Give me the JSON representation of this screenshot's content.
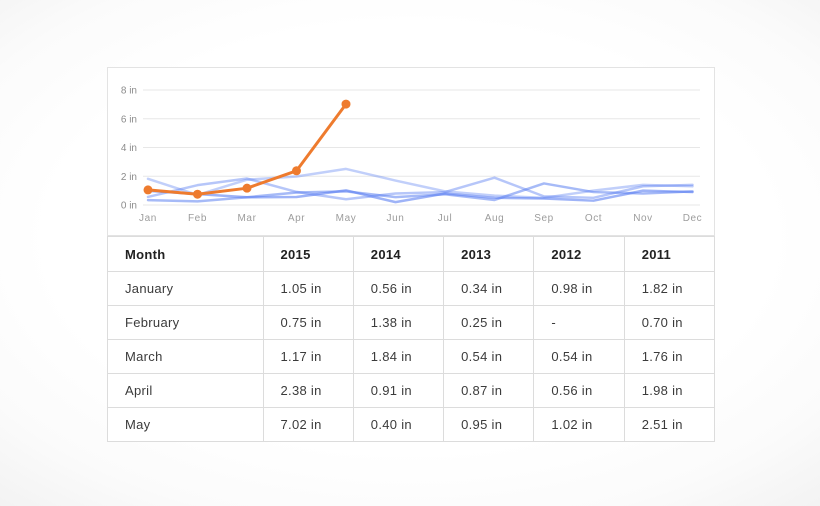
{
  "colors": {
    "accent_orange": "#ee7b2e",
    "line_blue": "#5d81f1",
    "grid_line": "#e7e7e7",
    "panel_border": "#e3e3e3",
    "axis_tick_text": "#8c8c8c",
    "axis_month_text": "#9c9c9c",
    "table_border": "#dcdcdc",
    "table_header_text": "#222222",
    "table_cell_text": "#3b3b3b"
  },
  "chart_data": {
    "type": "line",
    "title": "",
    "xlabel": "",
    "ylabel": "",
    "unit": "in",
    "ylim": [
      0,
      8
    ],
    "grid": "horizontal-only",
    "legend": "none",
    "x_categories": [
      "Jan",
      "Feb",
      "Mar",
      "Apr",
      "May",
      "Jun",
      "Jul",
      "Aug",
      "Sep",
      "Oct",
      "Nov",
      "Dec"
    ],
    "y_ticks": [
      {
        "value": 0,
        "label": "0 in"
      },
      {
        "value": 2,
        "label": "2 in"
      },
      {
        "value": 4,
        "label": "4 in"
      },
      {
        "value": 6,
        "label": "6 in"
      },
      {
        "value": 8,
        "label": "8 in"
      }
    ],
    "series": [
      {
        "name": "2015",
        "color": "#ee7b2e",
        "opacity": 1,
        "markers": true,
        "values": [
          1.05,
          0.75,
          1.17,
          2.38,
          7.02,
          null,
          null,
          null,
          null,
          null,
          null,
          null
        ]
      },
      {
        "name": "2014",
        "color": "#5d81f1",
        "opacity": 0.45,
        "markers": false,
        "values": [
          0.56,
          1.38,
          1.84,
          0.91,
          0.4,
          0.8,
          0.9,
          1.9,
          0.6,
          0.5,
          1.3,
          1.4
        ]
      },
      {
        "name": "2013",
        "color": "#5d81f1",
        "opacity": 0.55,
        "markers": false,
        "values": [
          0.34,
          0.25,
          0.54,
          0.87,
          0.95,
          0.55,
          0.75,
          0.35,
          1.5,
          0.9,
          0.8,
          0.95
        ]
      },
      {
        "name": "2012",
        "color": "#5d81f1",
        "opacity": 0.6,
        "markers": false,
        "values": [
          0.98,
          null,
          0.54,
          0.56,
          1.02,
          0.2,
          0.8,
          0.5,
          0.45,
          0.3,
          1.0,
          0.9
        ]
      },
      {
        "name": "2011",
        "color": "#5d81f1",
        "opacity": 0.38,
        "markers": false,
        "values": [
          1.82,
          0.7,
          1.76,
          1.98,
          2.51,
          1.7,
          0.95,
          0.65,
          0.5,
          1.0,
          1.4,
          1.3
        ]
      }
    ]
  },
  "table": {
    "columns": [
      "Month",
      "2015",
      "2014",
      "2013",
      "2012",
      "2011"
    ],
    "rows": [
      {
        "month": "January",
        "values": [
          "1.05 in",
          "0.56 in",
          "0.34 in",
          "0.98 in",
          "1.82 in"
        ]
      },
      {
        "month": "February",
        "values": [
          "0.75 in",
          "1.38 in",
          "0.25 in",
          "-",
          "0.70 in"
        ]
      },
      {
        "month": "March",
        "values": [
          "1.17 in",
          "1.84 in",
          "0.54 in",
          "0.54 in",
          "1.76 in"
        ]
      },
      {
        "month": "April",
        "values": [
          "2.38 in",
          "0.91 in",
          "0.87 in",
          "0.56 in",
          "1.98 in"
        ]
      },
      {
        "month": "May",
        "values": [
          "7.02 in",
          "0.40 in",
          "0.95 in",
          "1.02 in",
          "2.51 in"
        ]
      }
    ]
  }
}
